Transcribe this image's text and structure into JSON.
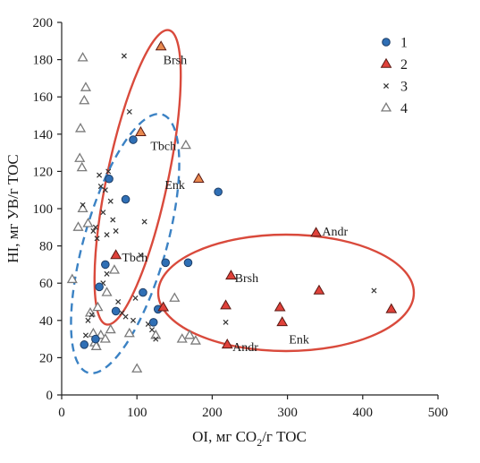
{
  "chart_data": {
    "type": "scatter",
    "xlabel": "OI, мг CO",
    "xlabel_sub": "2",
    "xlabel_tail": "/г TOC",
    "ylabel": "HI, мг УВ/г TOC",
    "xlim": [
      0,
      500
    ],
    "ylim": [
      0,
      200
    ],
    "xticks": [
      0,
      100,
      200,
      300,
      400,
      500
    ],
    "yticks": [
      0,
      20,
      40,
      60,
      80,
      100,
      120,
      140,
      160,
      180,
      200
    ],
    "grid": false,
    "legend_position": "top-right",
    "colors": {
      "s1_fill": "#2f6fb5",
      "s1_stroke": "#1d3d66",
      "s2_fill": "#e0413a",
      "s2_stroke": "#5a1a14",
      "s2_tbch_fill": "#e8894f",
      "s3": "#333333",
      "s4_stroke": "#7a7a7a",
      "ellipse_red": "#d94a3c",
      "ellipse_blue": "#3b82c4"
    },
    "series": [
      {
        "name": "1",
        "marker": "circle",
        "points": [
          [
            30,
            27
          ],
          [
            45,
            30
          ],
          [
            50,
            58
          ],
          [
            58,
            70
          ],
          [
            63,
            116
          ],
          [
            72,
            45
          ],
          [
            85,
            105
          ],
          [
            95,
            137
          ],
          [
            108,
            55
          ],
          [
            122,
            39
          ],
          [
            128,
            46
          ],
          [
            138,
            71
          ],
          [
            168,
            71
          ],
          [
            208,
            109
          ]
        ]
      },
      {
        "name": "2",
        "marker": "triangle",
        "points": [
          [
            72,
            75
          ],
          [
            135,
            47
          ],
          [
            218,
            48
          ],
          [
            220,
            27
          ],
          [
            225,
            64
          ],
          [
            290,
            47
          ],
          [
            293,
            39
          ],
          [
            338,
            87
          ],
          [
            342,
            56
          ],
          [
            438,
            46
          ]
        ],
        "points_orange": [
          [
            105,
            141
          ],
          [
            132,
            187
          ],
          [
            182,
            116
          ]
        ]
      },
      {
        "name": "3",
        "marker": "x",
        "points": [
          [
            28,
            102
          ],
          [
            32,
            32
          ],
          [
            35,
            40
          ],
          [
            40,
            43
          ],
          [
            42,
            88
          ],
          [
            45,
            90
          ],
          [
            47,
            84
          ],
          [
            50,
            118
          ],
          [
            52,
            112
          ],
          [
            55,
            98
          ],
          [
            55,
            60
          ],
          [
            58,
            110
          ],
          [
            60,
            86
          ],
          [
            60,
            65
          ],
          [
            62,
            120
          ],
          [
            65,
            104
          ],
          [
            68,
            94
          ],
          [
            72,
            88
          ],
          [
            75,
            50
          ],
          [
            80,
            44
          ],
          [
            85,
            42
          ],
          [
            90,
            152
          ],
          [
            95,
            40
          ],
          [
            98,
            52
          ],
          [
            105,
            75
          ],
          [
            110,
            93
          ],
          [
            115,
            38
          ],
          [
            120,
            35
          ],
          [
            125,
            30
          ],
          [
            218,
            39
          ],
          [
            415,
            56
          ],
          [
            83,
            182
          ]
        ]
      },
      {
        "name": "4",
        "marker": "triangle-open",
        "points": [
          [
            14,
            62
          ],
          [
            22,
            90
          ],
          [
            24,
            127
          ],
          [
            25,
            143
          ],
          [
            27,
            122
          ],
          [
            28,
            181
          ],
          [
            30,
            158
          ],
          [
            32,
            165
          ],
          [
            28,
            100
          ],
          [
            35,
            92
          ],
          [
            38,
            44
          ],
          [
            42,
            33
          ],
          [
            44,
            28
          ],
          [
            46,
            26
          ],
          [
            48,
            47
          ],
          [
            52,
            32
          ],
          [
            58,
            30
          ],
          [
            60,
            55
          ],
          [
            65,
            35
          ],
          [
            70,
            67
          ],
          [
            90,
            33
          ],
          [
            100,
            14
          ],
          [
            125,
            32
          ],
          [
            150,
            52
          ],
          [
            160,
            30
          ],
          [
            170,
            32
          ],
          [
            178,
            29
          ],
          [
            165,
            134
          ]
        ]
      }
    ],
    "annotations": [
      {
        "text": "Brsh",
        "x": 135,
        "y": 180
      },
      {
        "text": "Tbch",
        "x": 118,
        "y": 134
      },
      {
        "text": "Enk",
        "x": 137,
        "y": 113
      },
      {
        "text": "Tbch",
        "x": 80,
        "y": 74
      },
      {
        "text": "Brsh",
        "x": 230,
        "y": 63
      },
      {
        "text": "Andr",
        "x": 346,
        "y": 88
      },
      {
        "text": "Andr",
        "x": 227,
        "y": 26
      },
      {
        "text": "Enk",
        "x": 302,
        "y": 30
      }
    ]
  }
}
